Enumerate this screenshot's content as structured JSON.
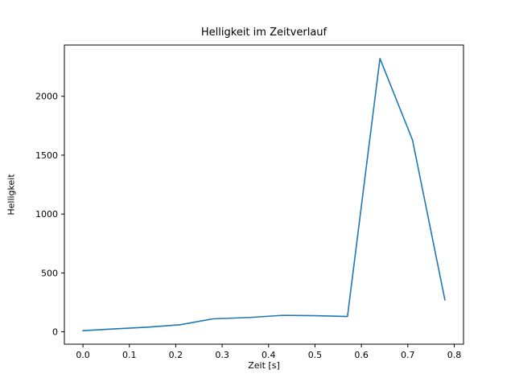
{
  "chart_data": {
    "type": "line",
    "title": "Helligkeit im Zeitverlauf",
    "xlabel": "Zeit [s]",
    "ylabel": "Helligkeit",
    "x": [
      0.0,
      0.07,
      0.14,
      0.21,
      0.28,
      0.36,
      0.43,
      0.5,
      0.57,
      0.64,
      0.71,
      0.78
    ],
    "y": [
      10,
      25,
      40,
      60,
      110,
      122,
      140,
      137,
      130,
      2320,
      1630,
      270
    ],
    "xticks": [
      0.0,
      0.1,
      0.2,
      0.3,
      0.4,
      0.5,
      0.6,
      0.7,
      0.8
    ],
    "xtick_labels": [
      "0.0",
      "0.1",
      "0.2",
      "0.3",
      "0.4",
      "0.5",
      "0.6",
      "0.7",
      "0.8"
    ],
    "yticks": [
      0,
      500,
      1000,
      1500,
      2000
    ],
    "ytick_labels": [
      "0",
      "500",
      "1000",
      "1500",
      "2000"
    ],
    "xlim": [
      -0.04,
      0.82
    ],
    "ylim": [
      -105,
      2435
    ],
    "line_color": "#1f77b4",
    "axis_color": "#000000",
    "grid": false,
    "legend": null
  }
}
